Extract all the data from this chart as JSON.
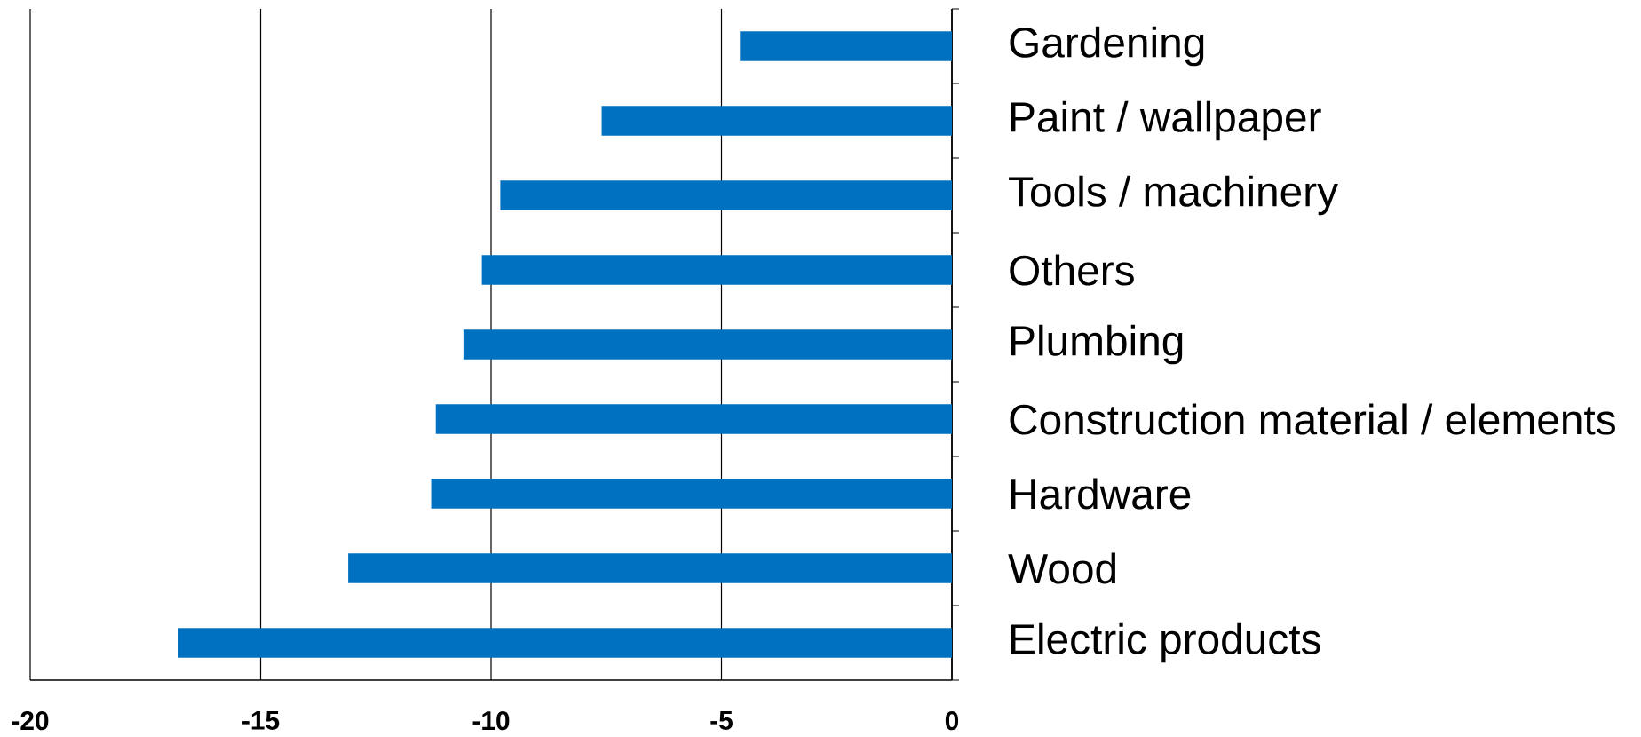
{
  "chart_data": {
    "type": "bar",
    "orientation": "horizontal",
    "categories": [
      "Gardening",
      "Paint / wallpaper",
      "Tools / machinery",
      "Others",
      "Plumbing",
      "Construction material / elements",
      "Hardware",
      "Wood",
      "Electric products"
    ],
    "values": [
      -4.6,
      -7.6,
      -9.8,
      -10.2,
      -10.6,
      -11.2,
      -11.3,
      -13.1,
      -16.8
    ],
    "color": "#0070c0",
    "xlim": [
      -20,
      0
    ],
    "xticks": [
      -20,
      -15,
      -10,
      -5,
      0
    ],
    "grid": "x"
  }
}
